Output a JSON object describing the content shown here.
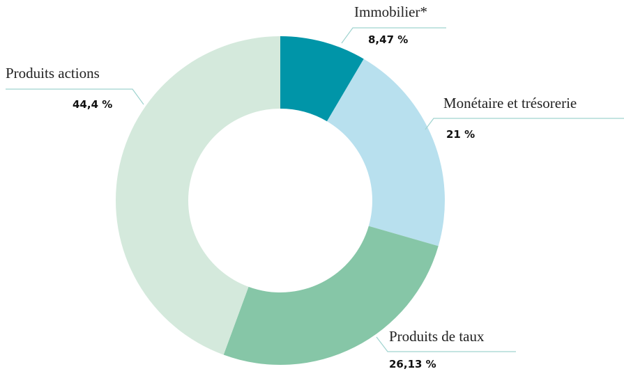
{
  "chart_data": {
    "type": "donut",
    "categories": [
      "Immobilier*",
      "Monétaire et trésorerie",
      "Produits de taux",
      "Produits actions"
    ],
    "values": [
      8.47,
      21,
      26.13,
      44.4
    ],
    "value_labels": [
      "8,47 %",
      "21 %",
      "26,13 %",
      "44,4 %"
    ],
    "colors": [
      "#0095a8",
      "#b8e0ee",
      "#86c6a7",
      "#d4e9dc"
    ]
  }
}
